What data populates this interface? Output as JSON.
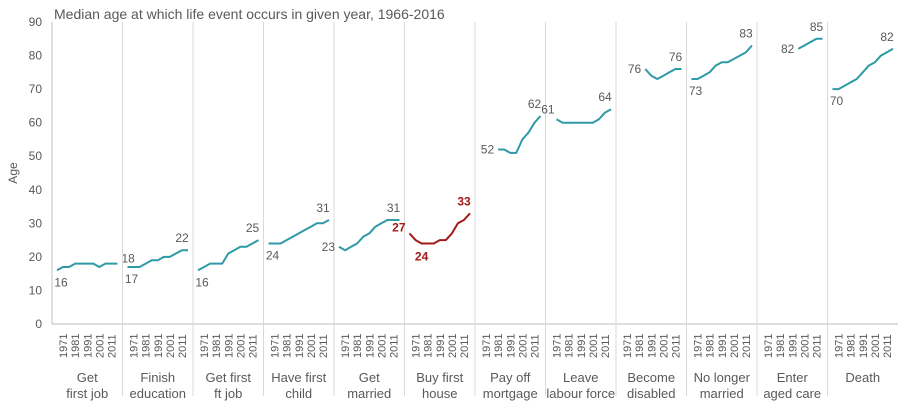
{
  "chart_data": {
    "type": "line",
    "title": "Median age at which life event occurs in given year, 1966-2016",
    "ylabel": "Age",
    "ylim": [
      0,
      90
    ],
    "yticks": [
      0,
      10,
      20,
      30,
      40,
      50,
      60,
      70,
      80,
      90
    ],
    "xticks": [
      "1971",
      "1981",
      "1991",
      "2001",
      "2011"
    ],
    "grid": false,
    "colors": {
      "default": "#2e9aa6",
      "highlight": "#a31a1a",
      "axis_text": "#595959",
      "separator": "#d9d9d9"
    },
    "x": [
      1966,
      1971,
      1976,
      1981,
      1986,
      1991,
      1996,
      2001,
      2006,
      2011,
      2016
    ],
    "panels": [
      {
        "label": "Get first job",
        "highlight": false,
        "values": [
          16,
          17,
          17,
          18,
          18,
          18,
          18,
          17,
          18,
          18,
          18
        ],
        "start_label": "16",
        "end_label": "18"
      },
      {
        "label": "Finish education",
        "highlight": false,
        "values": [
          17,
          17,
          17,
          18,
          19,
          19,
          20,
          20,
          21,
          22,
          22
        ],
        "start_label": "17",
        "end_label": "22"
      },
      {
        "label": "Get first ft job",
        "highlight": false,
        "values": [
          16,
          17,
          18,
          18,
          18,
          21,
          22,
          23,
          23,
          24,
          25
        ],
        "start_label": "16",
        "end_label": "25"
      },
      {
        "label": "Have first child",
        "highlight": false,
        "values": [
          24,
          24,
          24,
          25,
          26,
          27,
          28,
          29,
          30,
          30,
          31
        ],
        "start_label": "24",
        "end_label": "31"
      },
      {
        "label": "Get married",
        "highlight": false,
        "values": [
          23,
          22,
          23,
          24,
          26,
          27,
          29,
          30,
          31,
          31,
          31
        ],
        "start_label": "23",
        "end_label": "31"
      },
      {
        "label": "Buy first house",
        "highlight": true,
        "values": [
          27,
          25,
          24,
          24,
          24,
          25,
          25,
          27,
          30,
          31,
          33
        ],
        "start_label": "27",
        "min_label": "24",
        "end_label": "33"
      },
      {
        "label": "Pay off mortgage",
        "highlight": false,
        "values": [
          52,
          52,
          51,
          51,
          55,
          57,
          60,
          62
        ],
        "x": [
          1981,
          1986,
          1991,
          1996,
          2001,
          2006,
          2011,
          2016
        ],
        "start_label": "52",
        "end_label": "62"
      },
      {
        "label": "Leave labour force",
        "highlight": false,
        "values": [
          61,
          60,
          60,
          60,
          60,
          60,
          60,
          61,
          63,
          64
        ],
        "x": [
          1971,
          1976,
          1981,
          1986,
          1991,
          1996,
          2001,
          2006,
          2011,
          2016
        ],
        "start_label": "61",
        "end_label": "64"
      },
      {
        "label": "Become disabled",
        "highlight": false,
        "values": [
          76,
          74,
          73,
          74,
          75,
          76,
          76
        ],
        "x": [
          1986,
          1991,
          1996,
          2001,
          2006,
          2011,
          2016
        ],
        "start_label": "76",
        "end_label": "76"
      },
      {
        "label": "No longer married",
        "highlight": false,
        "values": [
          73,
          73,
          74,
          75,
          77,
          78,
          78,
          79,
          80,
          81,
          83
        ],
        "start_label": "73",
        "end_label": "83"
      },
      {
        "label": "Enter aged care",
        "highlight": false,
        "values": [
          82,
          83,
          84,
          85,
          85
        ],
        "x": [
          1996,
          2001,
          2006,
          2011,
          2016
        ],
        "start_label": "82",
        "end_label": "85"
      },
      {
        "label": "Death",
        "highlight": false,
        "values": [
          70,
          70,
          71,
          72,
          73,
          75,
          77,
          78,
          80,
          81,
          82
        ],
        "start_label": "70",
        "end_label": "82"
      }
    ]
  }
}
